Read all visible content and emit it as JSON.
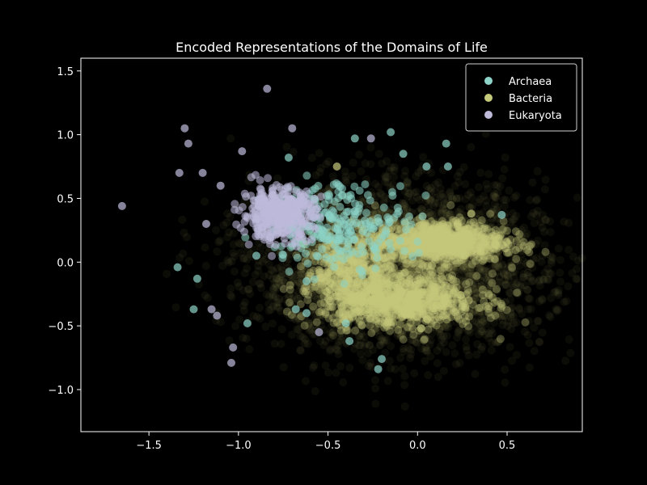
{
  "chart_data": {
    "type": "scatter",
    "title": "Encoded Representations of the Domains of Life",
    "xlabel": "",
    "ylabel": "",
    "xlim": [
      -1.88,
      0.92
    ],
    "ylim": [
      -1.33,
      1.6
    ],
    "x_ticks": [
      -1.5,
      -1.0,
      -0.5,
      0.0,
      0.5
    ],
    "x_tick_labels": [
      "−1.5",
      "−1.0",
      "−0.5",
      "0.0",
      "0.5"
    ],
    "y_ticks": [
      -1.0,
      -0.5,
      0.0,
      0.5,
      1.0,
      1.5
    ],
    "y_tick_labels": [
      "−1.0",
      "−0.5",
      "0.0",
      "0.5",
      "1.0",
      "1.5"
    ],
    "grid": false,
    "legend_position": "top-right",
    "background": "#000000",
    "series": [
      {
        "name": "Archaea",
        "color": "#8dd3c7",
        "clusters": [
          {
            "cx": -0.45,
            "cy": 0.3,
            "sx": 0.2,
            "sy": 0.16,
            "n": 260
          }
        ],
        "points": [
          [
            -0.35,
            0.97
          ],
          [
            -0.15,
            1.02
          ],
          [
            0.16,
            0.93
          ],
          [
            0.17,
            0.75
          ],
          [
            -0.38,
            -0.62
          ],
          [
            -0.22,
            -0.84
          ],
          [
            -0.2,
            -0.76
          ],
          [
            0.47,
            0.37
          ],
          [
            -1.25,
            -0.37
          ],
          [
            -1.34,
            -0.04
          ],
          [
            -1.23,
            -0.13
          ],
          [
            -0.68,
            -0.37
          ],
          [
            -0.62,
            -0.15
          ],
          [
            -0.4,
            -0.48
          ],
          [
            -0.72,
            0.82
          ],
          [
            0.05,
            0.75
          ],
          [
            -0.08,
            0.85
          ],
          [
            -0.95,
            -0.48
          ],
          [
            -0.9,
            0.05
          ],
          [
            -0.62,
            -0.4
          ]
        ]
      },
      {
        "name": "Bacteria",
        "color": "#c5c97a",
        "clusters": [
          {
            "cx": 0.12,
            "cy": 0.16,
            "sx": 0.18,
            "sy": 0.08,
            "n": 900
          },
          {
            "cx": -0.1,
            "cy": -0.3,
            "sx": 0.22,
            "sy": 0.1,
            "n": 900
          },
          {
            "cx": -0.38,
            "cy": -0.05,
            "sx": 0.12,
            "sy": 0.14,
            "n": 400
          }
        ],
        "haze": {
          "cx": -0.1,
          "cy": -0.05,
          "sx": 0.4,
          "sy": 0.32,
          "n": 3200
        },
        "points": [
          [
            0.3,
            0.38
          ],
          [
            0.26,
            0.05
          ],
          [
            0.02,
            -0.52
          ],
          [
            -0.45,
            0.75
          ]
        ]
      },
      {
        "name": "Eukaryota",
        "color": "#bebada",
        "clusters": [
          {
            "cx": -0.78,
            "cy": 0.38,
            "sx": 0.1,
            "sy": 0.1,
            "n": 380
          }
        ],
        "points": [
          [
            -1.65,
            0.44
          ],
          [
            -0.84,
            1.36
          ],
          [
            -1.3,
            1.05
          ],
          [
            -1.28,
            0.93
          ],
          [
            -1.33,
            0.7
          ],
          [
            -1.2,
            0.7
          ],
          [
            -0.98,
            0.87
          ],
          [
            -1.03,
            -0.67
          ],
          [
            -1.04,
            -0.79
          ],
          [
            -1.12,
            -0.42
          ],
          [
            -1.15,
            -0.37
          ],
          [
            -0.55,
            -0.55
          ],
          [
            -0.26,
            0.97
          ],
          [
            -0.7,
            1.05
          ],
          [
            -1.1,
            0.6
          ],
          [
            -1.18,
            0.3
          ]
        ]
      }
    ]
  }
}
